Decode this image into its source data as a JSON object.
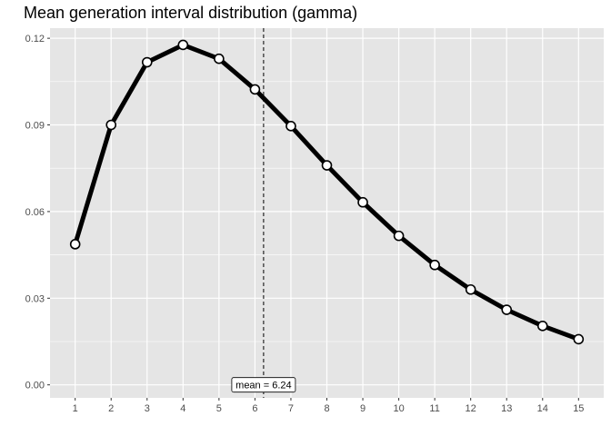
{
  "chart_data": {
    "type": "line",
    "title": "Mean generation interval distribution (gamma)",
    "xlabel": "",
    "ylabel": "",
    "x": [
      1,
      2,
      3,
      4,
      5,
      6,
      7,
      8,
      9,
      10,
      11,
      12,
      13,
      14,
      15
    ],
    "series": [
      {
        "values": [
          0.0487,
          0.09,
          0.1117,
          0.1177,
          0.1129,
          0.1023,
          0.0896,
          0.076,
          0.0632,
          0.0516,
          0.0415,
          0.033,
          0.026,
          0.0204,
          0.0158
        ]
      }
    ],
    "xlim": [
      0.3,
      15.7
    ],
    "ylim": [
      -0.0045,
      0.1235
    ],
    "x_ticks": [
      "1",
      "2",
      "3",
      "4",
      "5",
      "6",
      "7",
      "8",
      "9",
      "10",
      "11",
      "12",
      "13",
      "14",
      "15"
    ],
    "y_ticks": [
      "0.00",
      "0.03",
      "0.06",
      "0.09",
      "0.12"
    ],
    "y_tick_values": [
      0.0,
      0.03,
      0.06,
      0.09,
      0.12
    ],
    "grid": true,
    "vline": {
      "x": 6.24,
      "style": "dashed"
    },
    "annotation": {
      "text": "mean = 6.24",
      "x": 6.24,
      "y": 0.0
    },
    "colors": {
      "panel": "#e5e5e5",
      "grid": "#ffffff",
      "line": "#000000",
      "point_fill": "#ffffff"
    }
  }
}
